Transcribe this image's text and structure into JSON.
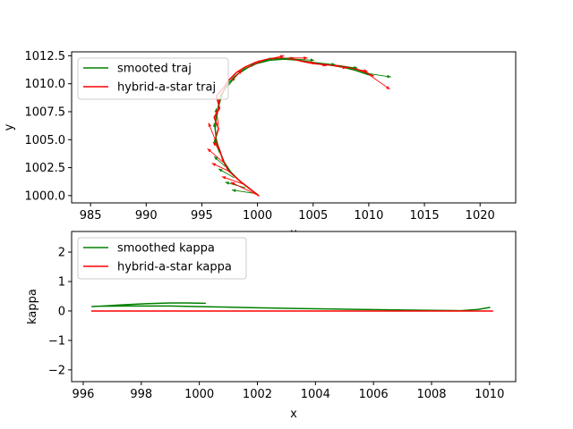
{
  "chart_data": [
    {
      "type": "line",
      "xlabel": "x",
      "ylabel": "y",
      "xlim": [
        983.3,
        1023.2
      ],
      "ylim": [
        999.35,
        1012.85
      ],
      "xticks": [
        "985",
        "990",
        "995",
        "1000",
        "1005",
        "1010",
        "1015",
        "1020"
      ],
      "xtick_values": [
        985,
        990,
        995,
        1000,
        1005,
        1010,
        1015,
        1020
      ],
      "yticks": [
        "1000.0",
        "1002.5",
        "1005.0",
        "1007.5",
        "1010.0",
        "1012.5"
      ],
      "ytick_values": [
        1000.0,
        1002.5,
        1005.0,
        1007.5,
        1010.0,
        1012.5
      ],
      "legend_position": "upper-left",
      "colors": {
        "smoothed": "#008000",
        "hybrid": "#ff0000"
      },
      "series": [
        {
          "name": "smooted traj",
          "color": "#008000",
          "x": [
            1000.0,
            999.3,
            998.4,
            997.6,
            997.0,
            996.6,
            996.3,
            996.2,
            996.3,
            996.5,
            996.8,
            997.2,
            997.9,
            998.8,
            999.9,
            1001.1,
            1002.4,
            1003.7,
            1005.0,
            1006.3,
            1007.6,
            1008.8,
            1010.0
          ],
          "y": [
            1000.1,
            1000.6,
            1001.3,
            1002.1,
            1003.0,
            1004.0,
            1005.0,
            1006.0,
            1007.0,
            1008.0,
            1009.0,
            1009.8,
            1010.6,
            1011.3,
            1011.8,
            1012.1,
            1012.2,
            1012.1,
            1011.9,
            1011.7,
            1011.5,
            1011.2,
            1010.8
          ]
        },
        {
          "name": "hybrid-a-star traj",
          "color": "#ff0000",
          "x": [
            1000.1,
            999.2,
            998.3,
            997.4,
            996.9,
            996.6,
            996.2,
            996.5,
            996.1,
            996.6,
            996.3,
            997.0,
            997.5,
            998.1,
            998.9,
            999.8,
            1000.9,
            1002.1,
            1003.2,
            1004.0,
            1005.0,
            1006.2,
            1007.4,
            1008.6,
            1009.8,
            1010.4
          ],
          "y": [
            1000.0,
            1000.7,
            1001.4,
            1002.2,
            1003.1,
            1004.1,
            1005.0,
            1006.0,
            1007.0,
            1007.8,
            1008.9,
            1009.7,
            1010.4,
            1011.0,
            1011.5,
            1011.9,
            1012.2,
            1012.3,
            1012.2,
            1012.0,
            1011.8,
            1011.7,
            1011.6,
            1011.4,
            1011.0,
            1010.7
          ]
        }
      ],
      "heading_arrows": [
        {
          "series": "smooted traj",
          "x": 999.7,
          "y": 1000.2,
          "dx": -2.0,
          "dy": 0.3
        },
        {
          "series": "smooted traj",
          "x": 998.9,
          "y": 1000.7,
          "dx": -1.8,
          "dy": 0.5
        },
        {
          "series": "smooted traj",
          "x": 997.9,
          "y": 1001.6,
          "dx": -1.4,
          "dy": 0.8
        },
        {
          "series": "smooted traj",
          "x": 997.1,
          "y": 1002.6,
          "dx": -1.0,
          "dy": 0.9
        },
        {
          "series": "smooted traj",
          "x": 996.6,
          "y": 1003.8,
          "dx": -0.5,
          "dy": 1.2
        },
        {
          "series": "smooted traj",
          "x": 996.3,
          "y": 1005.2,
          "dx": -0.2,
          "dy": 1.3
        },
        {
          "series": "smooted traj",
          "x": 996.2,
          "y": 1006.5,
          "dx": 0.1,
          "dy": 1.3
        },
        {
          "series": "smooted traj",
          "x": 996.5,
          "y": 1007.9,
          "dx": 0.3,
          "dy": 1.3
        },
        {
          "series": "smooted traj",
          "x": 997.2,
          "y": 1009.6,
          "dx": 0.8,
          "dy": 1.0
        },
        {
          "series": "smooted traj",
          "x": 998.5,
          "y": 1011.0,
          "dx": 1.2,
          "dy": 0.8
        },
        {
          "series": "smooted traj",
          "x": 999.9,
          "y": 1011.8,
          "dx": 1.5,
          "dy": 0.5
        },
        {
          "series": "smooted traj",
          "x": 1001.5,
          "y": 1012.2,
          "dx": 1.8,
          "dy": 0.1
        },
        {
          "series": "smooted traj",
          "x": 1003.3,
          "y": 1012.2,
          "dx": 1.8,
          "dy": -0.1
        },
        {
          "series": "smooted traj",
          "x": 1005.2,
          "y": 1011.9,
          "dx": 1.8,
          "dy": -0.2
        },
        {
          "series": "smooted traj",
          "x": 1007.2,
          "y": 1011.6,
          "dx": 1.8,
          "dy": -0.2
        },
        {
          "series": "smooted traj",
          "x": 1009.4,
          "y": 1011.0,
          "dx": 2.6,
          "dy": -0.4
        },
        {
          "series": "hybrid-a-star traj",
          "x": 1000.1,
          "y": 1000.0,
          "dx": -2.5,
          "dy": 1.2
        },
        {
          "series": "hybrid-a-star traj",
          "x": 998.8,
          "y": 1001.0,
          "dx": -2.0,
          "dy": 0.7
        },
        {
          "series": "hybrid-a-star traj",
          "x": 997.4,
          "y": 1002.2,
          "dx": -1.5,
          "dy": 0.7
        },
        {
          "series": "hybrid-a-star traj",
          "x": 996.9,
          "y": 1003.0,
          "dx": -1.4,
          "dy": 1.2
        },
        {
          "series": "hybrid-a-star traj",
          "x": 996.6,
          "y": 1004.1,
          "dx": -0.6,
          "dy": 0.7
        },
        {
          "series": "hybrid-a-star traj",
          "x": 996.2,
          "y": 1005.0,
          "dx": -0.6,
          "dy": 1.5
        },
        {
          "series": "hybrid-a-star traj",
          "x": 996.5,
          "y": 1006.3,
          "dx": -0.2,
          "dy": 1.3
        },
        {
          "series": "hybrid-a-star traj",
          "x": 996.4,
          "y": 1007.6,
          "dx": 0.2,
          "dy": 1.2
        },
        {
          "series": "hybrid-a-star traj",
          "x": 996.8,
          "y": 1009.0,
          "dx": 0.5,
          "dy": 1.2
        },
        {
          "series": "hybrid-a-star traj",
          "x": 997.7,
          "y": 1010.3,
          "dx": 0.9,
          "dy": 0.9
        },
        {
          "series": "hybrid-a-star traj",
          "x": 999.1,
          "y": 1011.4,
          "dx": 1.3,
          "dy": 0.7
        },
        {
          "series": "hybrid-a-star traj",
          "x": 1000.9,
          "y": 1012.2,
          "dx": 1.5,
          "dy": 0.3
        },
        {
          "series": "hybrid-a-star traj",
          "x": 1002.7,
          "y": 1012.3,
          "dx": 1.8,
          "dy": 0.0
        },
        {
          "series": "hybrid-a-star traj",
          "x": 1004.5,
          "y": 1012.0,
          "dx": 1.7,
          "dy": -0.4
        },
        {
          "series": "hybrid-a-star traj",
          "x": 1006.2,
          "y": 1011.7,
          "dx": 1.8,
          "dy": -0.3
        },
        {
          "series": "hybrid-a-star traj",
          "x": 1007.9,
          "y": 1011.5,
          "dx": 2.0,
          "dy": -0.4
        },
        {
          "series": "hybrid-a-star traj",
          "x": 1009.6,
          "y": 1011.1,
          "dx": 2.3,
          "dy": -1.6
        }
      ]
    },
    {
      "type": "line",
      "xlabel": "x",
      "ylabel": "kappa",
      "xlim": [
        995.6,
        1010.9
      ],
      "ylim": [
        -2.4,
        2.7
      ],
      "xticks": [
        "996",
        "998",
        "1000",
        "1002",
        "1004",
        "1006",
        "1008",
        "1010"
      ],
      "xtick_values": [
        996,
        998,
        1000,
        1002,
        1004,
        1006,
        1008,
        1010
      ],
      "yticks": [
        "−2",
        "−1",
        "0",
        "1",
        "2"
      ],
      "ytick_values": [
        -2,
        -1,
        0,
        1,
        2
      ],
      "legend_position": "upper-left",
      "series": [
        {
          "name": "smoothed kappa",
          "color": "#008000",
          "x": [
            1000.2,
            999.6,
            999.0,
            998.2,
            997.4,
            996.7,
            996.3,
            996.5,
            997.5,
            999.0,
            1000.5,
            1002.0,
            1003.5,
            1005.0,
            1006.5,
            1008.0,
            1009.0,
            1009.6,
            1010.0
          ],
          "y": [
            0.26,
            0.27,
            0.27,
            0.25,
            0.21,
            0.17,
            0.15,
            0.16,
            0.17,
            0.17,
            0.14,
            0.11,
            0.08,
            0.06,
            0.04,
            0.02,
            0.01,
            0.05,
            0.12
          ]
        },
        {
          "name": "hybrid-a-star kappa",
          "color": "#ff0000",
          "x": [
            996.3,
            1010.1
          ],
          "y": [
            0.0,
            0.0
          ]
        }
      ]
    }
  ]
}
